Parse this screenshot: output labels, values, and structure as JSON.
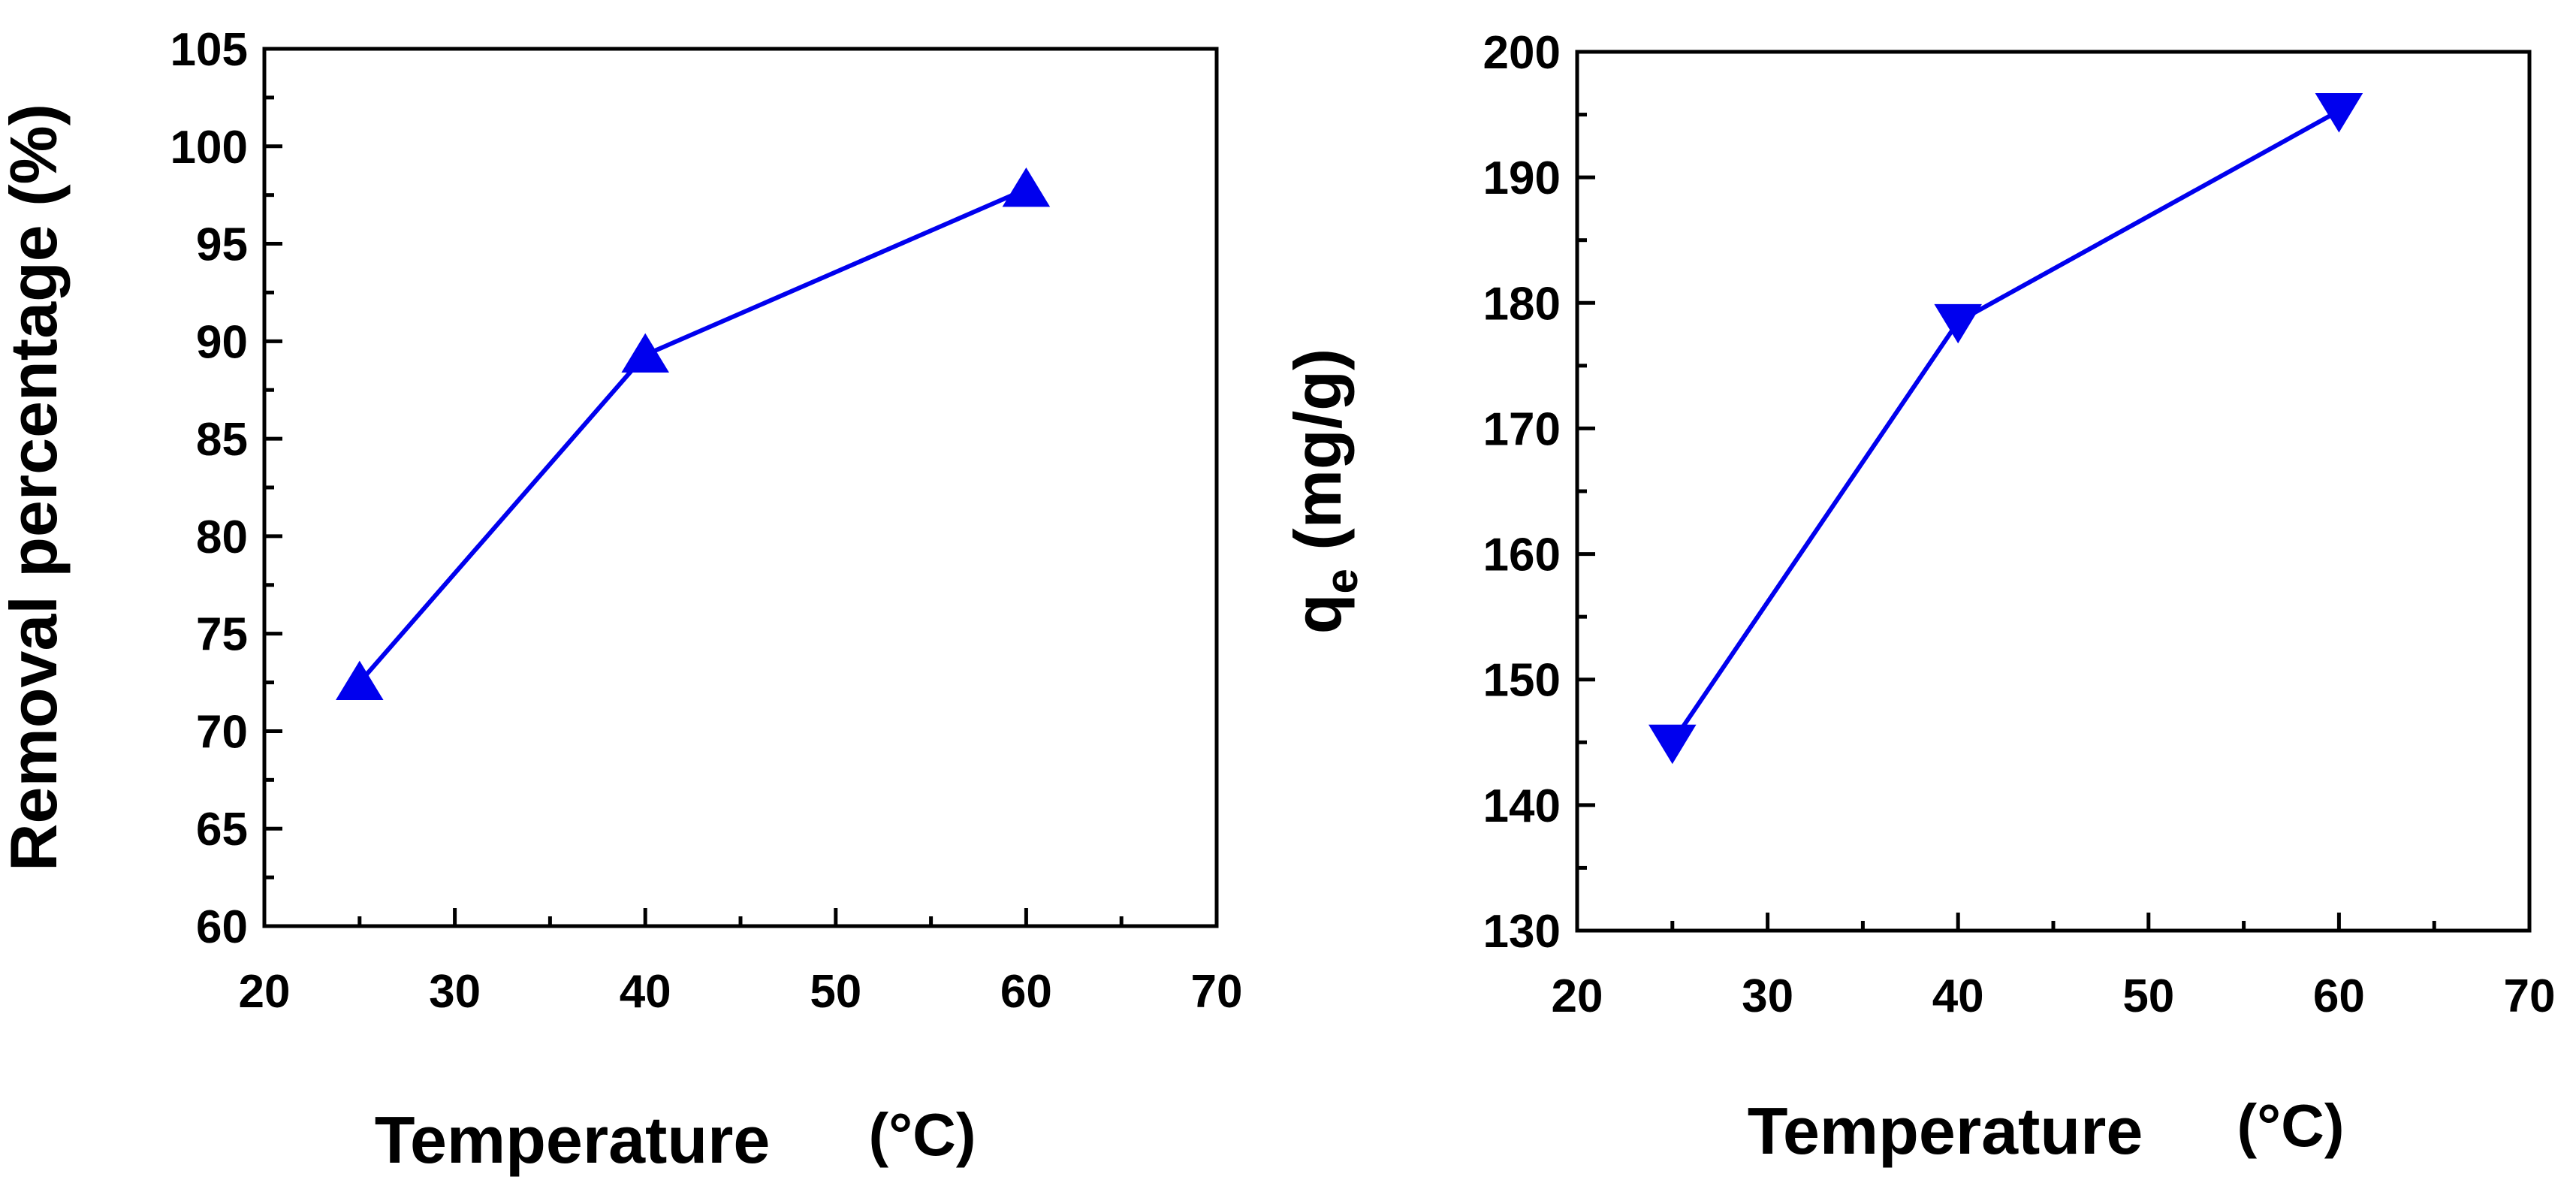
{
  "chart_data": [
    {
      "type": "line",
      "xlabel": "Temperature",
      "xunit": "(°C)",
      "ylabel": "Removal percentage (%)",
      "xlim": [
        20,
        70
      ],
      "ylim": [
        60,
        105
      ],
      "x_ticks": [
        20,
        30,
        40,
        50,
        60,
        70
      ],
      "y_ticks": [
        60,
        65,
        70,
        75,
        80,
        85,
        90,
        95,
        100,
        105
      ],
      "grid": false,
      "marker": "triangle-up",
      "color": "#0000ee",
      "series": [
        {
          "name": "Removal percentage",
          "x": [
            25,
            40,
            60
          ],
          "y": [
            72.5,
            89.3,
            97.8
          ]
        }
      ]
    },
    {
      "type": "line",
      "xlabel": "Temperature",
      "xunit": "(°C)",
      "ylabel_main": "q",
      "ylabel_sub": "e",
      "ylabel_rest": " (mg/g)",
      "xlim": [
        20,
        70
      ],
      "ylim": [
        130,
        200
      ],
      "x_ticks": [
        20,
        30,
        40,
        50,
        60,
        70
      ],
      "y_ticks": [
        130,
        140,
        150,
        160,
        170,
        180,
        190,
        200
      ],
      "grid": false,
      "marker": "triangle-down",
      "color": "#0000ee",
      "series": [
        {
          "name": "qe",
          "x": [
            25,
            40,
            60
          ],
          "y": [
            145.0,
            178.5,
            195.3
          ]
        }
      ]
    }
  ]
}
